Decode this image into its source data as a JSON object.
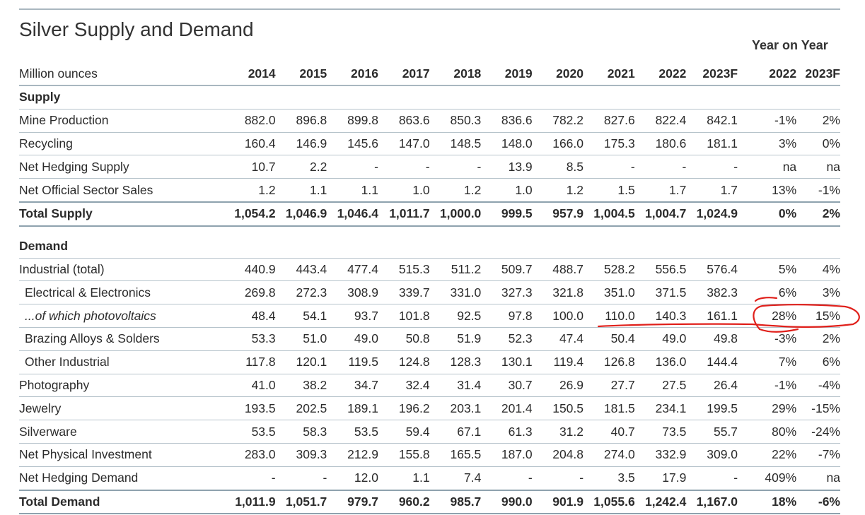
{
  "title": "Silver Supply and Demand",
  "yoy_heading": "Year on Year",
  "units_label": "Million ounces",
  "years": [
    "2014",
    "2015",
    "2016",
    "2017",
    "2018",
    "2019",
    "2020",
    "2021",
    "2022",
    "2023F"
  ],
  "yoy_years": [
    "2022",
    "2023F"
  ],
  "supply": {
    "heading": "Supply",
    "rows": [
      {
        "label": "Mine Production",
        "values": [
          "882.0",
          "896.8",
          "899.8",
          "863.6",
          "850.3",
          "836.6",
          "782.2",
          "827.6",
          "822.4",
          "842.1"
        ],
        "yoy": [
          "-1%",
          "2%"
        ]
      },
      {
        "label": "Recycling",
        "values": [
          "160.4",
          "146.9",
          "145.6",
          "147.0",
          "148.5",
          "148.0",
          "166.0",
          "175.3",
          "180.6",
          "181.1"
        ],
        "yoy": [
          "3%",
          "0%"
        ]
      },
      {
        "label": "Net Hedging Supply",
        "values": [
          "10.7",
          "2.2",
          "-",
          "-",
          "-",
          "13.9",
          "8.5",
          "-",
          "-",
          "-"
        ],
        "yoy": [
          "na",
          "na"
        ]
      },
      {
        "label": "Net Official Sector Sales",
        "values": [
          "1.2",
          "1.1",
          "1.1",
          "1.0",
          "1.2",
          "1.0",
          "1.2",
          "1.5",
          "1.7",
          "1.7"
        ],
        "yoy": [
          "13%",
          "-1%"
        ]
      }
    ],
    "total": {
      "label": "Total Supply",
      "values": [
        "1,054.2",
        "1,046.9",
        "1,046.4",
        "1,011.7",
        "1,000.0",
        "999.5",
        "957.9",
        "1,004.5",
        "1,004.7",
        "1,024.9"
      ],
      "yoy": [
        "0%",
        "2%"
      ]
    }
  },
  "demand": {
    "heading": "Demand",
    "rows": [
      {
        "label": "Industrial (total)",
        "values": [
          "440.9",
          "443.4",
          "477.4",
          "515.3",
          "511.2",
          "509.7",
          "488.7",
          "528.2",
          "556.5",
          "576.4"
        ],
        "yoy": [
          "5%",
          "4%"
        ]
      },
      {
        "label": "Electrical & Electronics",
        "values": [
          "269.8",
          "272.3",
          "308.9",
          "339.7",
          "331.0",
          "327.3",
          "321.8",
          "351.0",
          "371.5",
          "382.3"
        ],
        "yoy": [
          "6%",
          "3%"
        ]
      },
      {
        "label": "...of which photovoltaics",
        "values": [
          "48.4",
          "54.1",
          "93.7",
          "101.8",
          "92.5",
          "97.8",
          "100.0",
          "110.0",
          "140.3",
          "161.1"
        ],
        "yoy": [
          "28%",
          "15%"
        ]
      },
      {
        "label": "Brazing Alloys & Solders",
        "values": [
          "53.3",
          "51.0",
          "49.0",
          "50.8",
          "51.9",
          "52.3",
          "47.4",
          "50.4",
          "49.0",
          "49.8"
        ],
        "yoy": [
          "-3%",
          "2%"
        ]
      },
      {
        "label": "Other Industrial",
        "values": [
          "117.8",
          "120.1",
          "119.5",
          "124.8",
          "128.3",
          "130.1",
          "119.4",
          "126.8",
          "136.0",
          "144.4"
        ],
        "yoy": [
          "7%",
          "6%"
        ]
      },
      {
        "label": "Photography",
        "values": [
          "41.0",
          "38.2",
          "34.7",
          "32.4",
          "31.4",
          "30.7",
          "26.9",
          "27.7",
          "27.5",
          "26.4"
        ],
        "yoy": [
          "-1%",
          "-4%"
        ]
      },
      {
        "label": "Jewelry",
        "values": [
          "193.5",
          "202.5",
          "189.1",
          "196.2",
          "203.1",
          "201.4",
          "150.5",
          "181.5",
          "234.1",
          "199.5"
        ],
        "yoy": [
          "29%",
          "-15%"
        ]
      },
      {
        "label": "Silverware",
        "values": [
          "53.5",
          "58.3",
          "53.5",
          "59.4",
          "67.1",
          "61.3",
          "31.2",
          "40.7",
          "73.5",
          "55.7"
        ],
        "yoy": [
          "80%",
          "-24%"
        ]
      },
      {
        "label": "Net Physical Investment",
        "values": [
          "283.0",
          "309.3",
          "212.9",
          "155.8",
          "165.5",
          "187.0",
          "204.8",
          "274.0",
          "332.9",
          "309.0"
        ],
        "yoy": [
          "22%",
          "-7%"
        ]
      },
      {
        "label": "Net Hedging Demand",
        "values": [
          "-",
          "-",
          "12.0",
          "1.1",
          "7.4",
          "-",
          "-",
          "3.5",
          "17.9",
          "-"
        ],
        "yoy": [
          "409%",
          "na"
        ]
      }
    ],
    "total": {
      "label": "Total Demand",
      "values": [
        "1,011.9",
        "1,051.7",
        "979.7",
        "960.2",
        "985.7",
        "990.0",
        "901.9",
        "1,055.6",
        "1,242.4",
        "1,167.0"
      ],
      "yoy": [
        "18%",
        "-6%"
      ]
    }
  },
  "annotation_color": "#e0201b"
}
